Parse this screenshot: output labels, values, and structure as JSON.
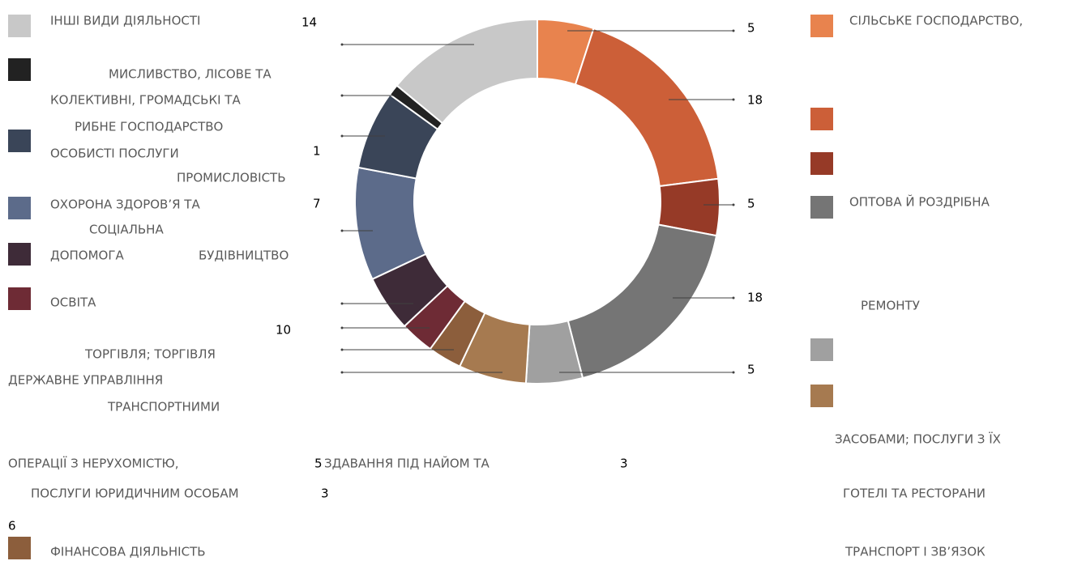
{
  "chart_data": {
    "type": "donut",
    "values": [
      5,
      18,
      5,
      18,
      5,
      6,
      3,
      3,
      5,
      10,
      7,
      1,
      14
    ],
    "colors": [
      "#E8834E",
      "#CC5F38",
      "#963A27",
      "#757575",
      "#A0A0A0",
      "#A67A50",
      "#8C5E3C",
      "#6E2B35",
      "#3E2B38",
      "#5C6B8A",
      "#3A4558",
      "#222222",
      "#C8C8C8"
    ],
    "annotations": [
      "ІНШІ ВИДИ ДІЯЛЬНОСТІ",
      "МИСЛИВСТВО, ЛІСОВЕ ТА",
      "КОЛЕКТИВНІ, ГРОМАДСЬКІ ТА",
      "РИБНЕ ГОСПОДАРСТВО",
      "ОСОБИСТІ ПОСЛУГИ",
      "ПРОМИСЛОВІСТЬ",
      "ОХОРОНА ЗДОРОВ’Я ТА",
      "СОЦІАЛЬНА",
      "ДОПОМОГА",
      "БУДІВНИЦТВО",
      "ОСВІТА",
      "ТОРГІВЛЯ; ТОРГІВЛЯ",
      "ДЕРЖАВНЕ УПРАВЛІННЯ",
      "ТРАНСПОРТНИМИ",
      "ОПЕРАЦІЇ З НЕРУХОМІСТЮ,",
      "ЗДАВАННЯ ПІД НАЙОМ ТА",
      "ПОСЛУГИ ЮРИДИЧНИМ ОСОБАМ",
      "ФІНАНСОВА ДІЯЛЬНІСТЬ",
      "СІЛЬСЬКЕ ГОСПОДАРСТВО,",
      "ОПТОВА Й РОЗДРІБНА",
      "РЕМОНТУ",
      "ЗАСОБАМИ; ПОСЛУГИ З ЇХ",
      "ГОТЕЛІ ТА РЕСТОРАНИ",
      "ТРАНСПОРТ І ЗВ’ЯЗОК"
    ]
  }
}
